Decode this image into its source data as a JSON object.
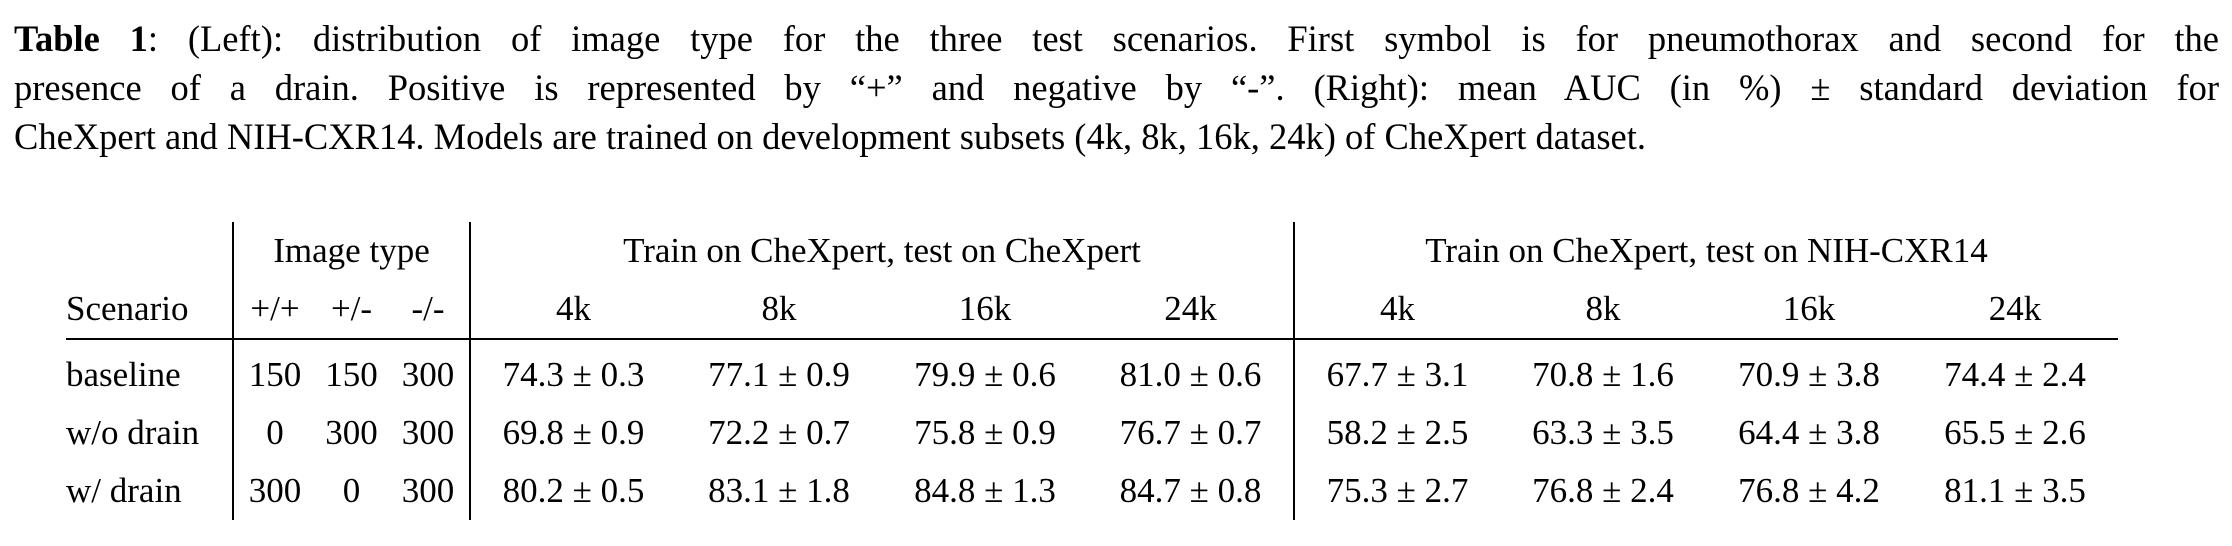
{
  "caption": {
    "label": "Table 1",
    "line1_rest": ": (Left): distribution of image type for the three test scenarios. First symbol is for pneumothorax and second for the",
    "line2": "presence of a drain. Positive is represented by “+” and negative by “-”. (Right): mean AUC (in %) ± standard deviation for",
    "line3": "CheXpert and NIH-CXR14. Models are trained on development subsets (4k, 8k, 16k, 24k) of CheXpert dataset."
  },
  "table": {
    "groups": {
      "image_type": "Image type",
      "chexpert": "Train on CheXpert, test on CheXpert",
      "nih": "Train on CheXpert, test on NIH-CXR14"
    },
    "columns": {
      "scenario": "Scenario",
      "image_type": [
        "+/+",
        "+/-",
        "-/-"
      ],
      "chexpert": [
        "4k",
        "8k",
        "16k",
        "24k"
      ],
      "nih": [
        "4k",
        "8k",
        "16k",
        "24k"
      ]
    },
    "rows": [
      {
        "scenario": "baseline",
        "image_type": [
          "150",
          "150",
          "300"
        ],
        "chexpert": [
          "74.3 ± 0.3",
          "77.1 ± 0.9",
          "79.9 ± 0.6",
          "81.0 ± 0.6"
        ],
        "nih": [
          "67.7 ± 3.1",
          "70.8 ± 1.6",
          "70.9 ± 3.8",
          "74.4 ± 2.4"
        ]
      },
      {
        "scenario": "w/o drain",
        "image_type": [
          "0",
          "300",
          "300"
        ],
        "chexpert": [
          "69.8 ± 0.9",
          "72.2 ± 0.7",
          "75.8 ± 0.9",
          "76.7 ± 0.7"
        ],
        "nih": [
          "58.2 ± 2.5",
          "63.3 ± 3.5",
          "64.4 ± 3.8",
          "65.5 ± 2.6"
        ]
      },
      {
        "scenario": "w/ drain",
        "image_type": [
          "300",
          "0",
          "300"
        ],
        "chexpert": [
          "80.2 ± 0.5",
          "83.1 ± 1.8",
          "84.8 ± 1.3",
          "84.7 ± 0.8"
        ],
        "nih": [
          "75.3 ± 2.7",
          "76.8 ± 2.4",
          "76.8 ± 4.2",
          "81.1 ± 3.5"
        ]
      }
    ]
  }
}
